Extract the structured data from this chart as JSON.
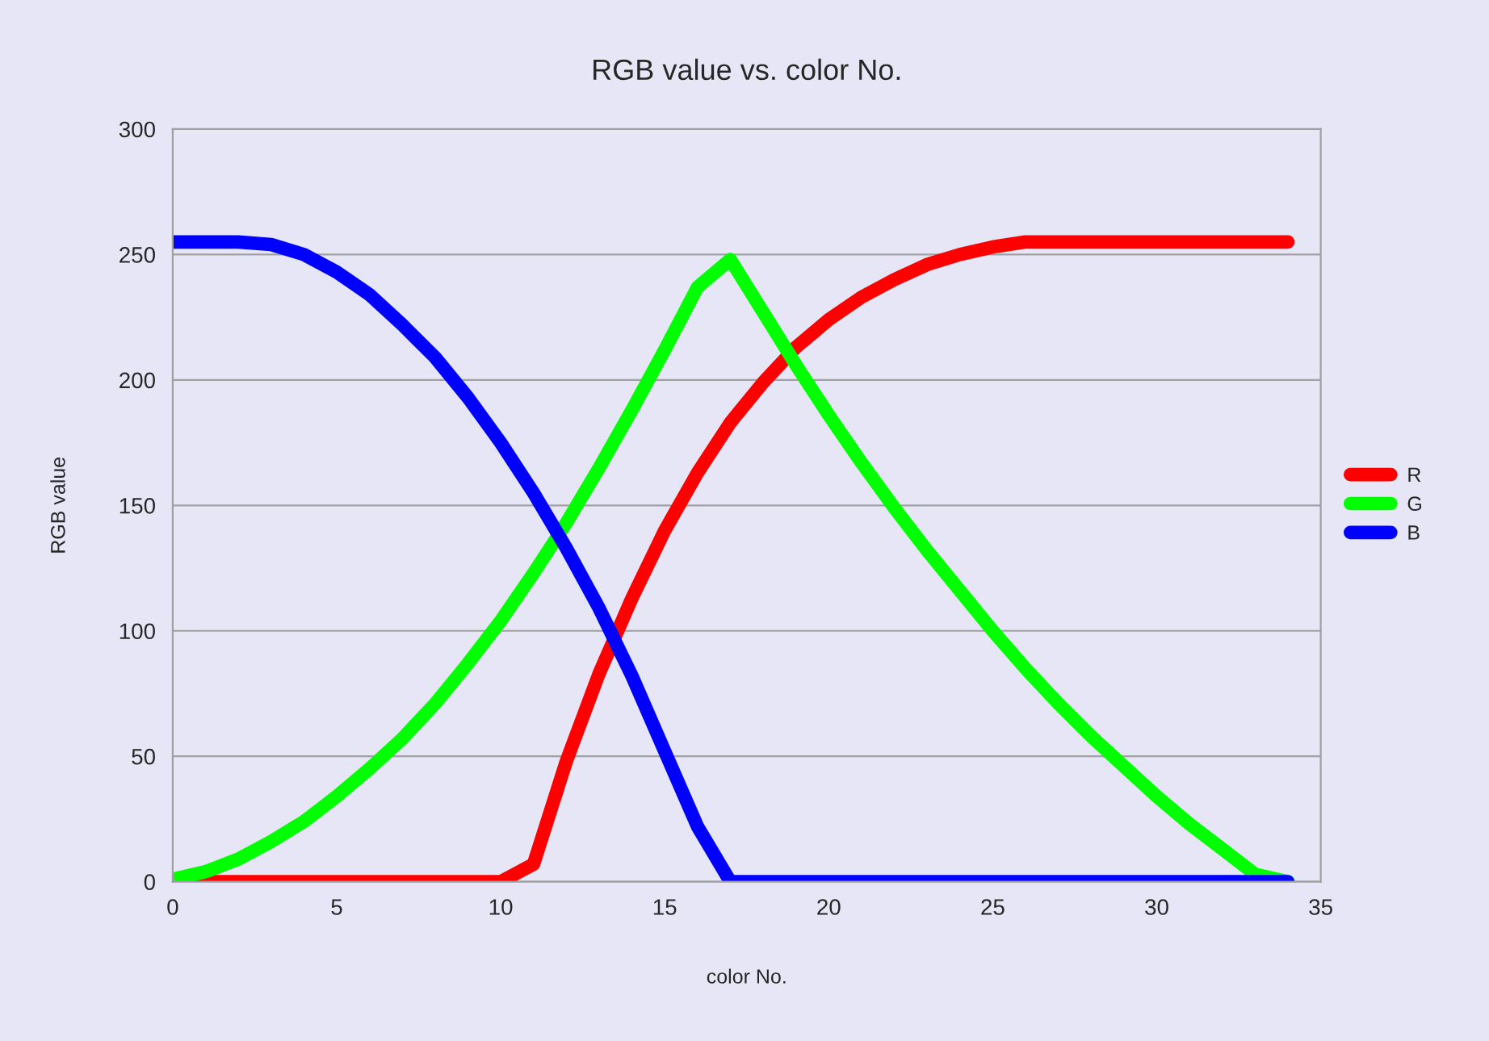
{
  "chart_data": {
    "type": "line",
    "title": "RGB value vs. color No.",
    "xlabel": "color No.",
    "ylabel": "RGB value",
    "x": [
      0,
      1,
      2,
      3,
      4,
      5,
      6,
      7,
      8,
      9,
      10,
      11,
      12,
      13,
      14,
      15,
      16,
      17,
      18,
      19,
      20,
      21,
      22,
      23,
      24,
      25,
      26,
      27,
      28,
      29,
      30,
      31,
      32,
      33,
      34
    ],
    "series": [
      {
        "name": "R",
        "color": "#ff0000",
        "values": [
          0,
          0,
          0,
          0,
          0,
          0,
          0,
          0,
          0,
          0,
          0,
          7,
          48,
          83,
          113,
          140,
          163,
          183,
          199,
          213,
          224,
          233,
          240,
          246,
          250,
          253,
          255,
          255,
          255,
          255,
          255,
          255,
          255,
          255,
          255
        ]
      },
      {
        "name": "G",
        "color": "#00ff00",
        "values": [
          1,
          4,
          9,
          16,
          24,
          34,
          45,
          57,
          71,
          87,
          104,
          123,
          143,
          165,
          188,
          212,
          237,
          248,
          227,
          206,
          186,
          167,
          149,
          132,
          116,
          100,
          85,
          71,
          58,
          46,
          34,
          23,
          13,
          3,
          0
        ]
      },
      {
        "name": "B",
        "color": "#0000ff",
        "values": [
          255,
          255,
          255,
          254,
          250,
          243,
          234,
          222,
          209,
          193,
          175,
          155,
          133,
          109,
          82,
          52,
          22,
          0,
          0,
          0,
          0,
          0,
          0,
          0,
          0,
          0,
          0,
          0,
          0,
          0,
          0,
          0,
          0,
          0,
          0
        ]
      }
    ],
    "xlim": [
      0,
      35
    ],
    "xticks": [
      0,
      5,
      10,
      15,
      20,
      25,
      30,
      35
    ],
    "ylim": [
      0,
      300
    ],
    "yticks": [
      0,
      50,
      100,
      150,
      200,
      250,
      300
    ],
    "grid": "y",
    "legend": "right",
    "marker": "none",
    "line_style": "solid"
  }
}
